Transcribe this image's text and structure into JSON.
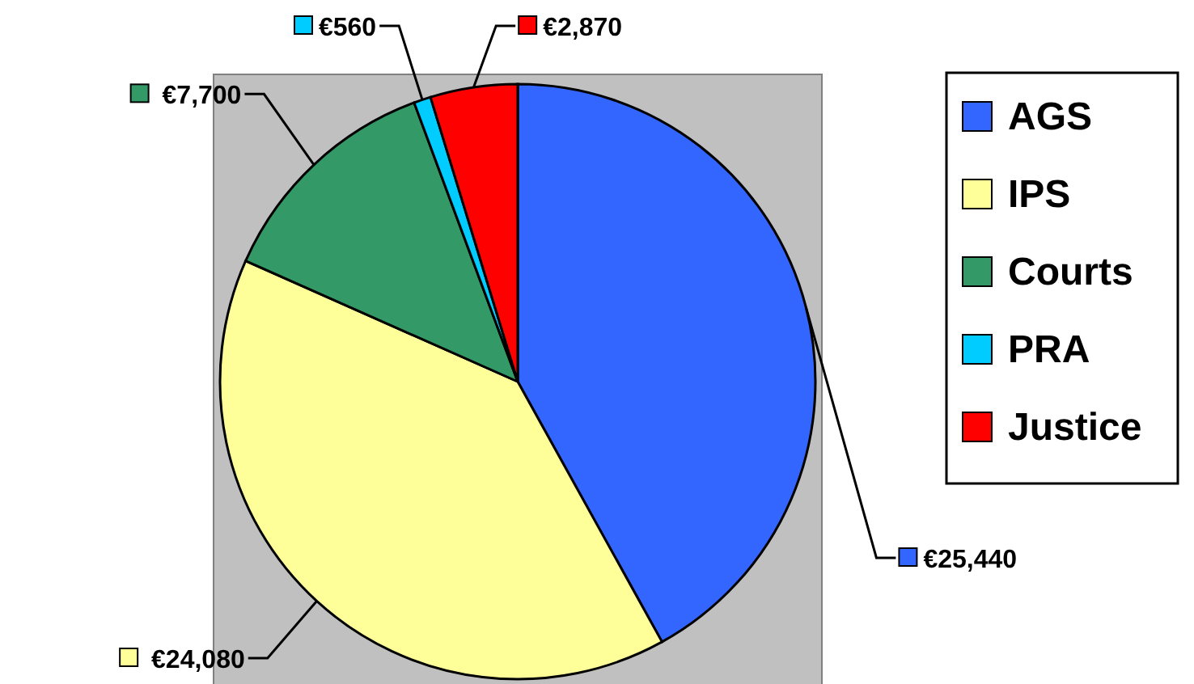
{
  "chart_data": {
    "type": "pie",
    "categories": [
      "AGS",
      "IPS",
      "Courts",
      "PRA",
      "Justice"
    ],
    "values": [
      25440,
      24080,
      7700,
      560,
      2870
    ],
    "value_labels": [
      "€25,440",
      "€24,080",
      "€7,700",
      "€560",
      "€2,870"
    ],
    "colors": [
      "#3366ff",
      "#ffff99",
      "#339966",
      "#00ccff",
      "#ff0000"
    ],
    "legend": "right"
  }
}
